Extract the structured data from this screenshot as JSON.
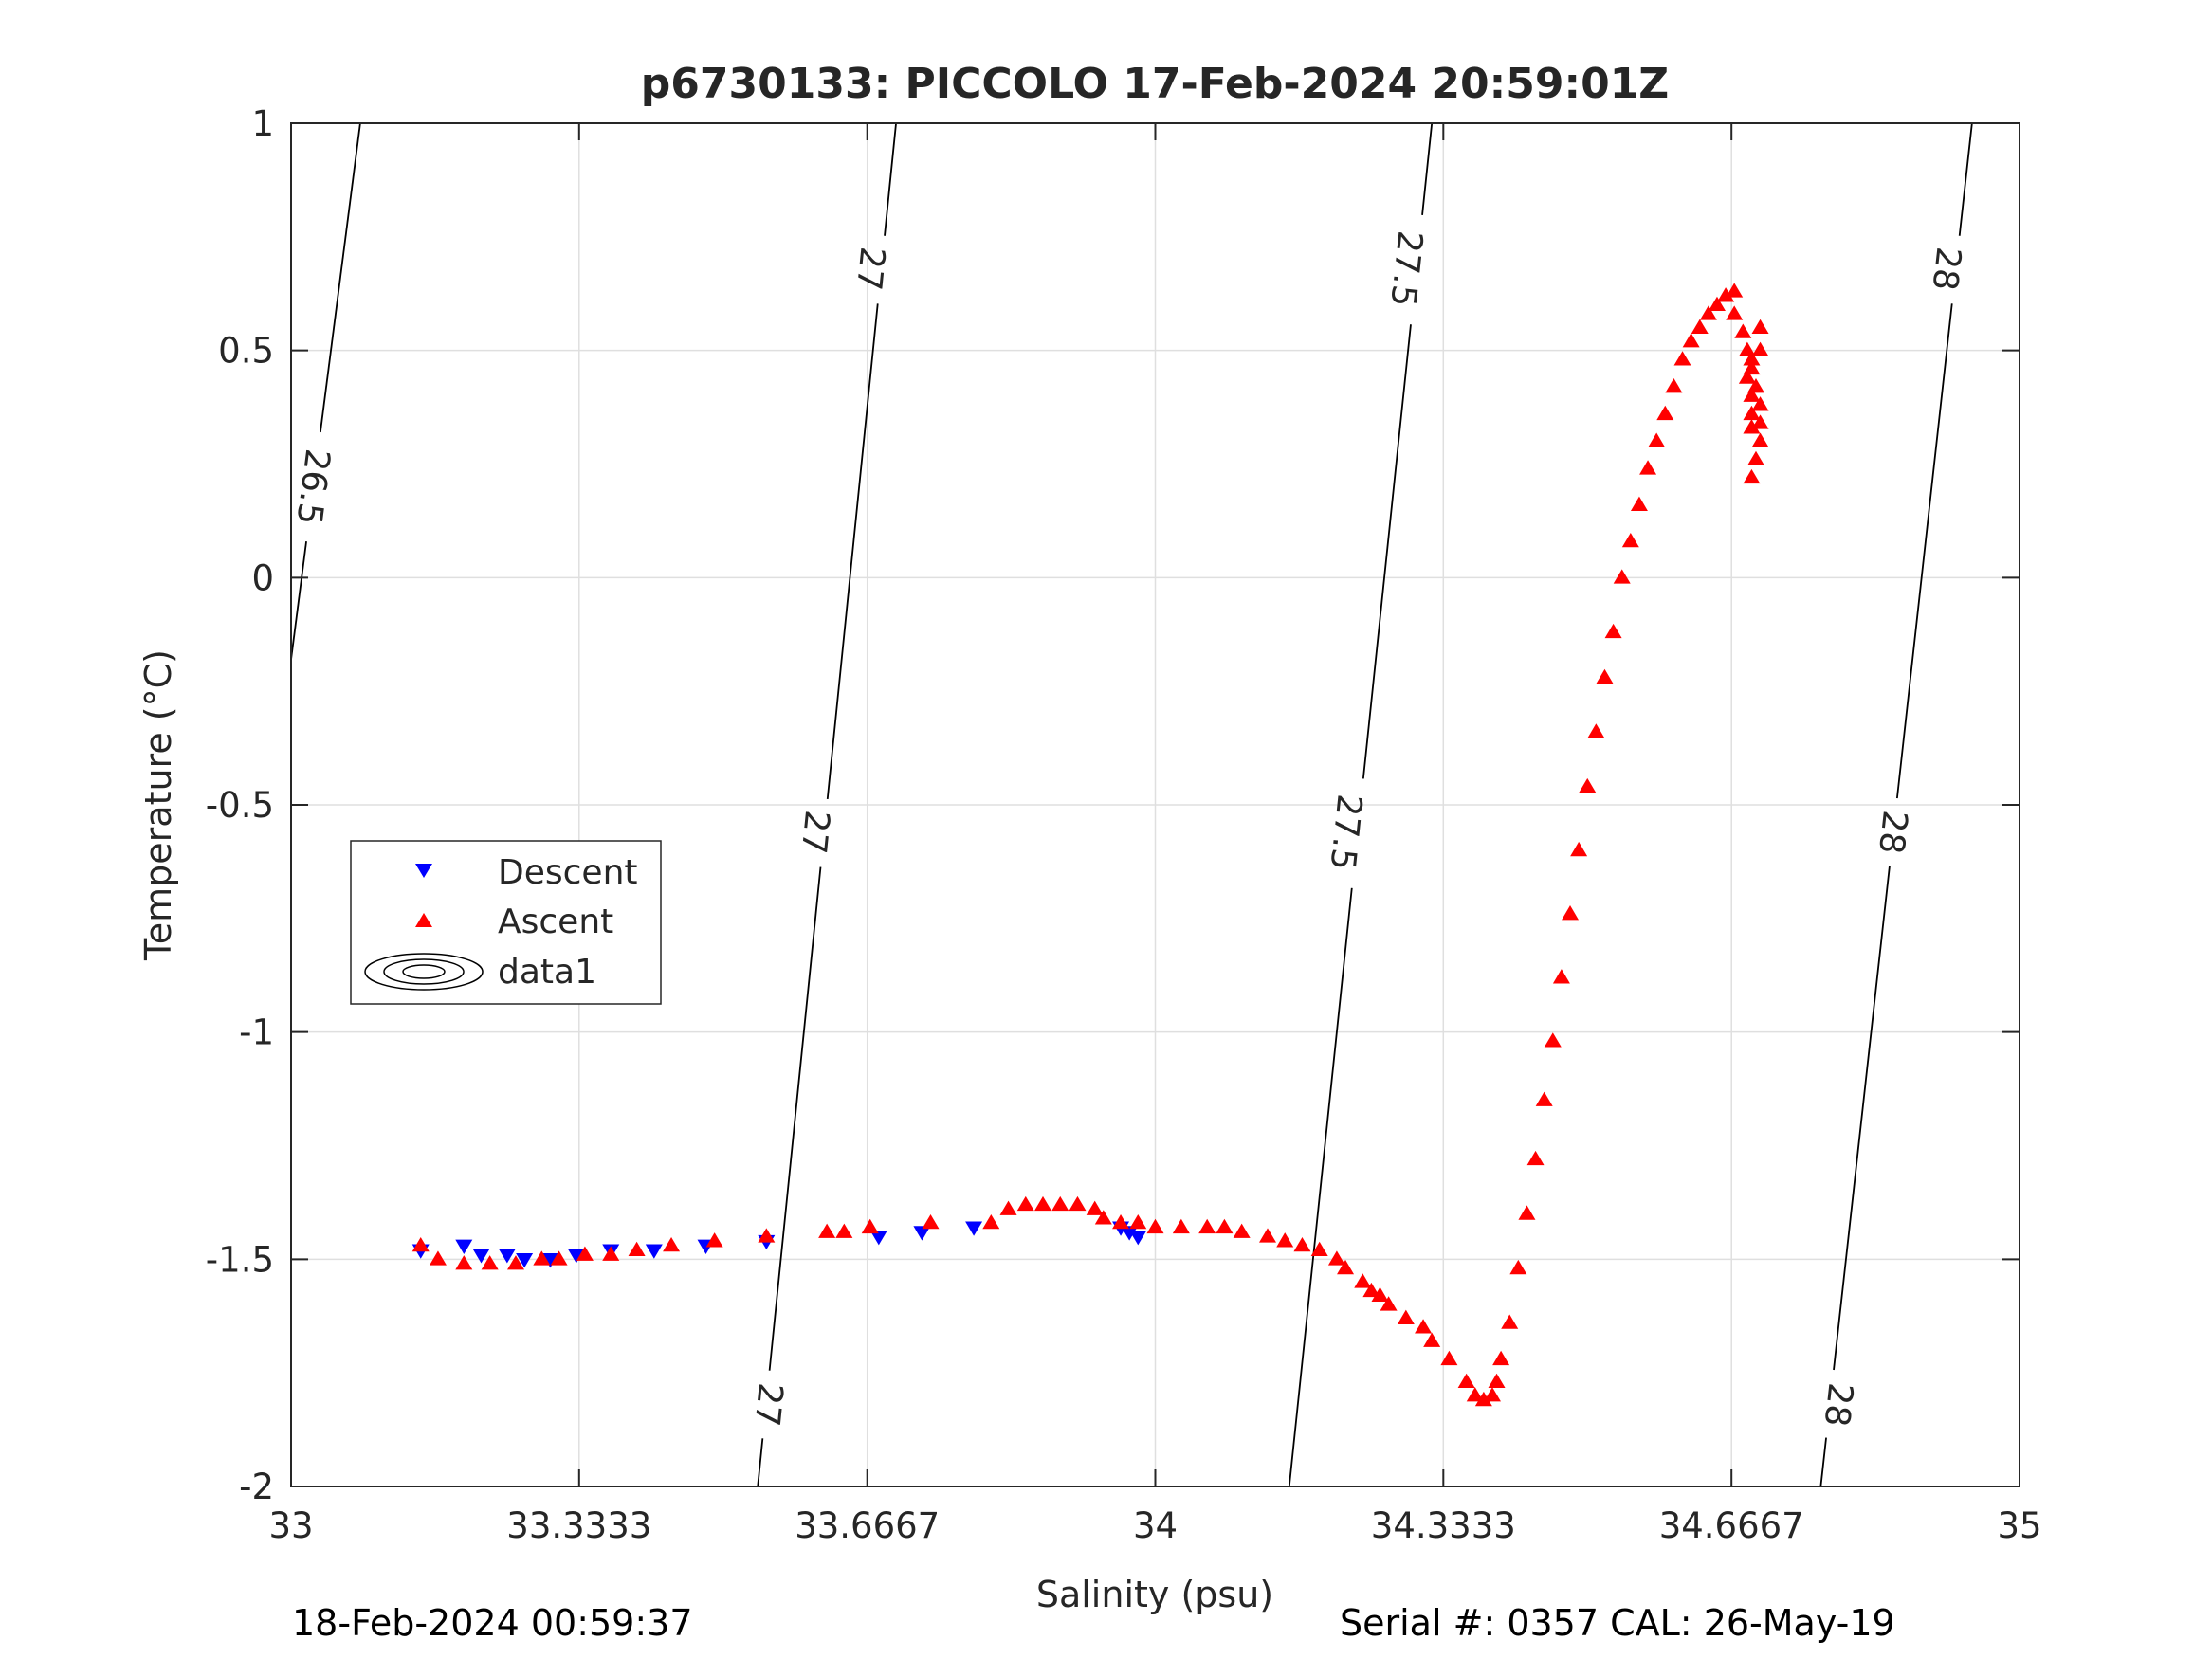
{
  "chart_data": {
    "type": "scatter",
    "title": "p6730133: PICCOLO 17-Feb-2024 20:59:01Z",
    "xlabel": "Salinity (psu)",
    "ylabel": "Temperature (°C)",
    "xlim": [
      33,
      35
    ],
    "ylim": [
      -2,
      1
    ],
    "x_ticks": [
      33,
      33.3333,
      33.6667,
      34,
      34.3333,
      34.6667,
      35
    ],
    "x_tick_labels": [
      "33",
      "33.3333",
      "33.6667",
      "34",
      "34.3333",
      "34.6667",
      "35"
    ],
    "y_ticks": [
      1,
      0.5,
      0,
      -0.5,
      -1,
      -1.5,
      -2
    ],
    "y_tick_labels": [
      "1",
      "0.5",
      "0",
      "-0.5",
      "-1",
      "-1.5",
      "-2"
    ],
    "grid": true,
    "legend_position": "middle-left",
    "legend": [
      "Descent",
      "Ascent",
      "data1"
    ],
    "colors": {
      "descent": "#0000ff",
      "ascent": "#ff0000",
      "contour": "#000000",
      "grid": "#dfdfdf"
    },
    "series": [
      {
        "name": "Descent",
        "marker": "triangle-down",
        "x": [
          33.15,
          33.2,
          33.22,
          33.25,
          33.27,
          33.3,
          33.33,
          33.37,
          33.42,
          33.48,
          33.55,
          33.68,
          33.73,
          33.79,
          33.96,
          33.97,
          33.98
        ],
        "y": [
          -1.48,
          -1.47,
          -1.49,
          -1.49,
          -1.5,
          -1.5,
          -1.49,
          -1.48,
          -1.48,
          -1.47,
          -1.46,
          -1.45,
          -1.44,
          -1.43,
          -1.43,
          -1.44,
          -1.45
        ]
      },
      {
        "name": "Ascent",
        "marker": "triangle-up",
        "x": [
          33.15,
          33.17,
          33.2,
          33.23,
          33.26,
          33.29,
          33.31,
          33.34,
          33.37,
          33.4,
          33.44,
          33.49,
          33.55,
          33.62,
          33.64,
          33.67,
          33.74,
          33.81,
          33.83,
          33.85,
          33.87,
          33.89,
          33.91,
          33.93,
          33.94,
          33.96,
          33.98,
          34.0,
          34.03,
          34.06,
          34.08,
          34.1,
          34.13,
          34.15,
          34.17,
          34.19,
          34.21,
          34.22,
          34.24,
          34.25,
          34.26,
          34.27,
          34.29,
          34.31,
          34.32,
          34.34,
          34.36,
          34.37,
          34.38,
          34.39,
          34.395,
          34.4,
          34.41,
          34.42,
          34.43,
          34.44,
          34.45,
          34.46,
          34.47,
          34.48,
          34.49,
          34.5,
          34.51,
          34.52,
          34.53,
          34.54,
          34.55,
          34.56,
          34.57,
          34.58,
          34.59,
          34.6,
          34.61,
          34.62,
          34.63,
          34.64,
          34.65,
          34.66,
          34.67,
          34.67,
          34.68,
          34.685,
          34.69,
          34.695,
          34.7,
          34.7,
          34.7,
          34.695,
          34.69,
          34.7,
          34.7,
          34.69,
          34.685,
          34.69,
          34.69,
          34.69
        ],
        "y": [
          -1.47,
          -1.5,
          -1.51,
          -1.51,
          -1.51,
          -1.5,
          -1.5,
          -1.49,
          -1.49,
          -1.48,
          -1.47,
          -1.46,
          -1.45,
          -1.44,
          -1.44,
          -1.43,
          -1.42,
          -1.42,
          -1.39,
          -1.38,
          -1.38,
          -1.38,
          -1.38,
          -1.39,
          -1.41,
          -1.42,
          -1.42,
          -1.43,
          -1.43,
          -1.43,
          -1.43,
          -1.44,
          -1.45,
          -1.46,
          -1.47,
          -1.48,
          -1.5,
          -1.52,
          -1.55,
          -1.57,
          -1.58,
          -1.6,
          -1.63,
          -1.65,
          -1.68,
          -1.72,
          -1.77,
          -1.8,
          -1.81,
          -1.8,
          -1.77,
          -1.72,
          -1.64,
          -1.52,
          -1.4,
          -1.28,
          -1.15,
          -1.02,
          -0.88,
          -0.74,
          -0.6,
          -0.46,
          -0.34,
          -0.22,
          -0.12,
          0.0,
          0.08,
          0.16,
          0.24,
          0.3,
          0.36,
          0.42,
          0.48,
          0.52,
          0.55,
          0.58,
          0.6,
          0.62,
          0.63,
          0.58,
          0.54,
          0.5,
          0.46,
          0.42,
          0.38,
          0.34,
          0.3,
          0.26,
          0.22,
          0.5,
          0.55,
          0.48,
          0.44,
          0.4,
          0.36,
          0.33
        ]
      }
    ],
    "contours": [
      {
        "level": "26.5",
        "line": [
          [
            33.0,
            -0.18
          ],
          [
            33.08,
            1.0
          ]
        ],
        "labels": [
          {
            "text": "26.5",
            "x": 33.025,
            "y": 0.2
          }
        ]
      },
      {
        "level": "27",
        "line": [
          [
            33.54,
            -2.0
          ],
          [
            33.7,
            1.0
          ]
        ],
        "labels": [
          {
            "text": "27",
            "x": 33.552,
            "y": -1.82
          },
          {
            "text": "27",
            "x": 33.606,
            "y": -0.56
          },
          {
            "text": "27",
            "x": 33.67,
            "y": 0.68
          }
        ]
      },
      {
        "level": "27.5",
        "line": [
          [
            34.155,
            -2.0
          ],
          [
            34.32,
            1.0
          ]
        ],
        "labels": [
          {
            "text": "27.5",
            "x": 34.22,
            "y": -0.56
          },
          {
            "text": "27.5",
            "x": 34.29,
            "y": 0.68
          }
        ]
      },
      {
        "level": "28",
        "line": [
          [
            34.77,
            -2.0
          ],
          [
            34.945,
            1.0
          ]
        ],
        "labels": [
          {
            "text": "28",
            "x": 34.79,
            "y": -1.82
          },
          {
            "text": "28",
            "x": 34.853,
            "y": -0.56
          },
          {
            "text": "28",
            "x": 34.915,
            "y": 0.68
          }
        ]
      }
    ]
  },
  "footer": {
    "left": "18-Feb-2024 00:59:37",
    "right": "Serial #: 0357  CAL: 26-May-19"
  }
}
